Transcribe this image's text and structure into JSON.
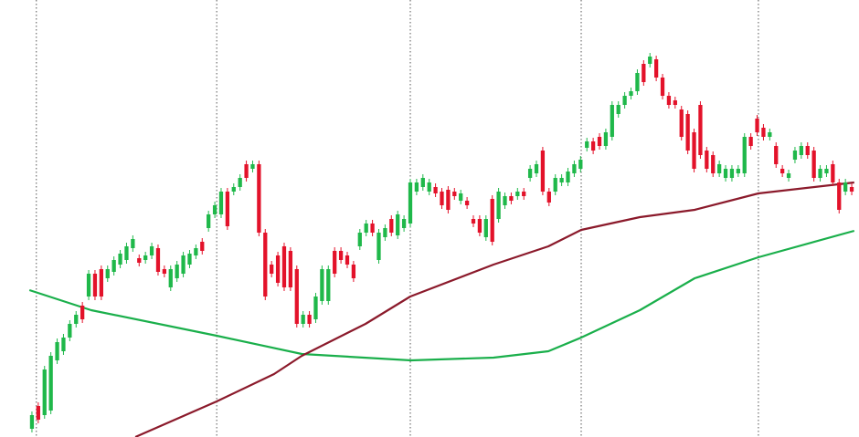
{
  "chart_data": {
    "type": "candlestick",
    "xlim": [
      -0.5,
      130.5
    ],
    "ylim": [
      0,
      479
    ],
    "up_color": "#1fb84a",
    "down_color": "#e3122a",
    "vlines": [
      0.7,
      29.3,
      60,
      87.1,
      115.2
    ],
    "vline_color": "#555555",
    "candles": [
      [
        9,
        28,
        5,
        24
      ],
      [
        34,
        38,
        15,
        19
      ],
      [
        24,
        78,
        20,
        74
      ],
      [
        29,
        93,
        25,
        89
      ],
      [
        84,
        108,
        80,
        104
      ],
      [
        94,
        113,
        90,
        109
      ],
      [
        109,
        128,
        105,
        124
      ],
      [
        124,
        138,
        120,
        134
      ],
      [
        144,
        148,
        125,
        129
      ],
      [
        154,
        183,
        150,
        179
      ],
      [
        179,
        183,
        150,
        154
      ],
      [
        184,
        188,
        150,
        154
      ],
      [
        174,
        188,
        170,
        184
      ],
      [
        181,
        198,
        177,
        194
      ],
      [
        189,
        205,
        185,
        201
      ],
      [
        194,
        213,
        190,
        209
      ],
      [
        207,
        221,
        203,
        217
      ],
      [
        196,
        200,
        187,
        191
      ],
      [
        194,
        203,
        190,
        199
      ],
      [
        199,
        213,
        195,
        209
      ],
      [
        207,
        211,
        177,
        181
      ],
      [
        184,
        188,
        175,
        179
      ],
      [
        164,
        188,
        160,
        184
      ],
      [
        174,
        193,
        170,
        189
      ],
      [
        179,
        203,
        175,
        199
      ],
      [
        189,
        205,
        185,
        201
      ],
      [
        199,
        211,
        195,
        207
      ],
      [
        214,
        218,
        200,
        204
      ],
      [
        229,
        248,
        225,
        244
      ],
      [
        244,
        258,
        240,
        254
      ],
      [
        244,
        273,
        240,
        269
      ],
      [
        269,
        273,
        227,
        231
      ],
      [
        269,
        278,
        265,
        274
      ],
      [
        274,
        288,
        270,
        284
      ],
      [
        299,
        303,
        280,
        284
      ],
      [
        294,
        303,
        290,
        299
      ],
      [
        299,
        303,
        220,
        224
      ],
      [
        224,
        228,
        150,
        154
      ],
      [
        189,
        193,
        175,
        179
      ],
      [
        199,
        203,
        165,
        169
      ],
      [
        209,
        213,
        160,
        164
      ],
      [
        204,
        208,
        160,
        164
      ],
      [
        184,
        188,
        120,
        124
      ],
      [
        124,
        138,
        120,
        134
      ],
      [
        134,
        138,
        120,
        124
      ],
      [
        129,
        158,
        125,
        154
      ],
      [
        149,
        188,
        145,
        184
      ],
      [
        149,
        188,
        145,
        184
      ],
      [
        204,
        208,
        175,
        179
      ],
      [
        204,
        208,
        190,
        194
      ],
      [
        199,
        203,
        185,
        189
      ],
      [
        189,
        193,
        170,
        174
      ],
      [
        209,
        228,
        205,
        224
      ],
      [
        224,
        238,
        220,
        234
      ],
      [
        234,
        238,
        220,
        224
      ],
      [
        194,
        228,
        190,
        224
      ],
      [
        219,
        233,
        215,
        229
      ],
      [
        239,
        243,
        220,
        224
      ],
      [
        221,
        248,
        217,
        244
      ],
      [
        229,
        243,
        225,
        239
      ],
      [
        234,
        283,
        230,
        279
      ],
      [
        269,
        283,
        265,
        279
      ],
      [
        274,
        288,
        270,
        284
      ],
      [
        269,
        283,
        265,
        279
      ],
      [
        274,
        278,
        263,
        267
      ],
      [
        269,
        273,
        250,
        254
      ],
      [
        271,
        275,
        245,
        249
      ],
      [
        269,
        273,
        260,
        264
      ],
      [
        259,
        271,
        255,
        267
      ],
      [
        259,
        263,
        250,
        254
      ],
      [
        239,
        243,
        230,
        234
      ],
      [
        239,
        243,
        220,
        224
      ],
      [
        219,
        243,
        215,
        239
      ],
      [
        261,
        265,
        210,
        214
      ],
      [
        239,
        273,
        235,
        269
      ],
      [
        254,
        268,
        250,
        264
      ],
      [
        264,
        268,
        255,
        259
      ],
      [
        264,
        273,
        260,
        269
      ],
      [
        269,
        273,
        260,
        264
      ],
      [
        284,
        298,
        280,
        294
      ],
      [
        289,
        303,
        285,
        299
      ],
      [
        314,
        318,
        265,
        269
      ],
      [
        269,
        273,
        253,
        257
      ],
      [
        269,
        288,
        265,
        284
      ],
      [
        279,
        288,
        275,
        284
      ],
      [
        279,
        295,
        275,
        291
      ],
      [
        289,
        303,
        285,
        299
      ],
      [
        294,
        308,
        290,
        304
      ],
      [
        317,
        328,
        313,
        324
      ],
      [
        324,
        328,
        310,
        314
      ],
      [
        329,
        333,
        315,
        319
      ],
      [
        319,
        338,
        315,
        334
      ],
      [
        329,
        368,
        325,
        364
      ],
      [
        354,
        368,
        350,
        364
      ],
      [
        364,
        378,
        360,
        374
      ],
      [
        374,
        383,
        370,
        379
      ],
      [
        379,
        403,
        375,
        399
      ],
      [
        409,
        413,
        385,
        389
      ],
      [
        409,
        421,
        405,
        417
      ],
      [
        414,
        418,
        390,
        394
      ],
      [
        394,
        398,
        370,
        374
      ],
      [
        374,
        378,
        360,
        364
      ],
      [
        369,
        373,
        360,
        364
      ],
      [
        359,
        363,
        325,
        329
      ],
      [
        354,
        358,
        310,
        314
      ],
      [
        334,
        338,
        290,
        294
      ],
      [
        364,
        368,
        305,
        309
      ],
      [
        314,
        318,
        290,
        294
      ],
      [
        309,
        313,
        285,
        289
      ],
      [
        289,
        303,
        285,
        299
      ],
      [
        284,
        298,
        280,
        294
      ],
      [
        284,
        298,
        280,
        294
      ],
      [
        289,
        298,
        285,
        294
      ],
      [
        289,
        333,
        285,
        329
      ],
      [
        329,
        333,
        315,
        319
      ],
      [
        349,
        353,
        330,
        334
      ],
      [
        339,
        343,
        325,
        329
      ],
      [
        329,
        338,
        325,
        334
      ],
      [
        319,
        323,
        295,
        299
      ],
      [
        294,
        298,
        285,
        289
      ],
      [
        284,
        293,
        280,
        289
      ],
      [
        304,
        318,
        300,
        314
      ],
      [
        309,
        323,
        305,
        319
      ],
      [
        319,
        323,
        305,
        309
      ],
      [
        314,
        318,
        280,
        284
      ],
      [
        284,
        298,
        280,
        294
      ],
      [
        289,
        298,
        285,
        294
      ],
      [
        299,
        303,
        275,
        279
      ],
      [
        279,
        283,
        245,
        249
      ],
      [
        269,
        283,
        265,
        279
      ],
      [
        274,
        278,
        265,
        269
      ]
    ],
    "series": [
      {
        "color": "#1aaf4b",
        "x": [
          -0.4,
          9.4,
          29.3,
          42.8,
          60.1,
          73.2,
          81.9,
          87.1,
          96.4,
          105.1,
          115.2,
          130.4
        ],
        "values": [
          161,
          139,
          111,
          91,
          84,
          87,
          94,
          109,
          139,
          174,
          197,
          226
        ]
      },
      {
        "color": "#8b1a2b",
        "x": [
          16.4,
          29.3,
          38.4,
          42.8,
          52.9,
          60,
          73.2,
          81.9,
          87.1,
          96.4,
          105.1,
          115.2,
          130.4
        ],
        "values": [
          0,
          39,
          69,
          89,
          124,
          154,
          189,
          209,
          227,
          241,
          249,
          267,
          279
        ]
      }
    ]
  }
}
